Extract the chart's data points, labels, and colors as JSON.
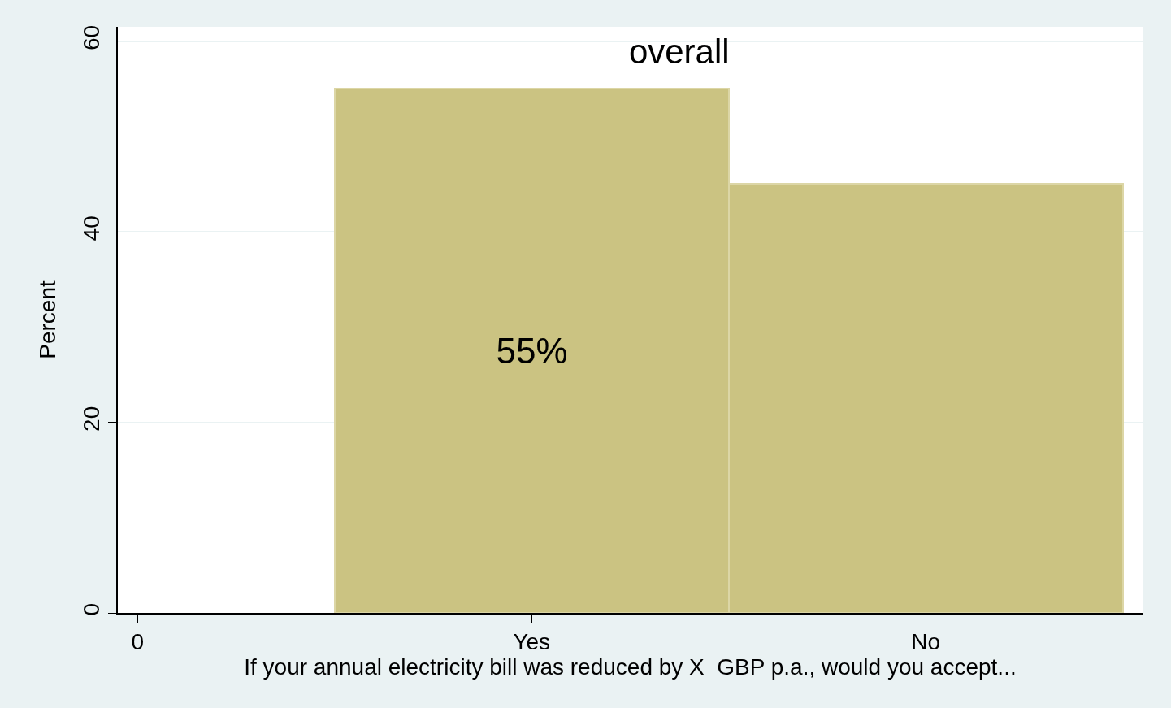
{
  "chart_data": {
    "type": "bar",
    "title": "overall",
    "xlabel": "If your annual electricity bill was reduced by X  GBP p.a., would you accept...",
    "ylabel": "Percent",
    "categories": [
      "0",
      "Yes",
      "No"
    ],
    "values": [
      null,
      55,
      45
    ],
    "value_labels": [
      null,
      "55%",
      null
    ],
    "color": "#cbc382",
    "ylim": [
      0,
      61.5
    ],
    "yticks": [
      0,
      20,
      40,
      60
    ],
    "grid": "y"
  }
}
